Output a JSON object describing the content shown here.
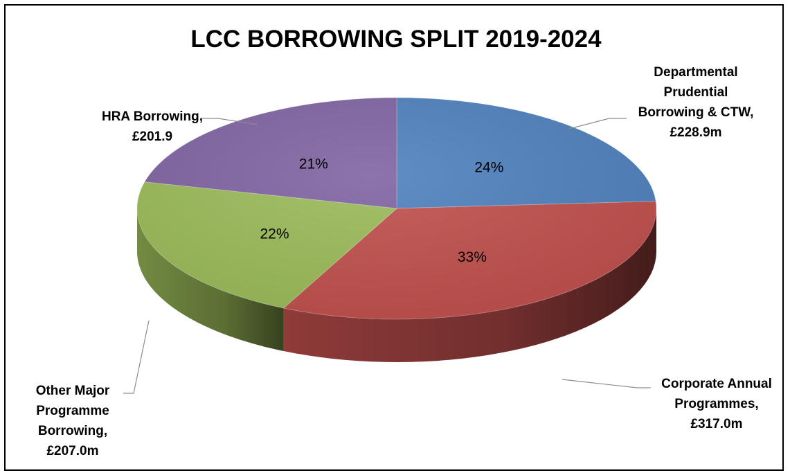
{
  "chart_data": {
    "type": "pie",
    "title": "LCC BORROWING SPLIT 2019-2024",
    "categories": [
      "Departmental Prudential Borrowing & CTW",
      "Corporate Annual Programmes",
      "Other Major Programme Borrowing",
      "HRA Borrowing"
    ],
    "values": [
      228.9,
      317.0,
      207.0,
      201.9
    ],
    "percent_labels": [
      "24%",
      "33%",
      "22%",
      "21%"
    ],
    "slice_labels": [
      [
        "Departmental",
        "Prudential",
        "Borrowing & CTW,",
        "£228.9m"
      ],
      [
        "Corporate Annual",
        "Programmes,",
        "£317.0m"
      ],
      [
        "Other Major",
        "Programme",
        "Borrowing,",
        "£207.0m"
      ],
      [
        "HRA Borrowing,",
        "£201.9"
      ]
    ],
    "colors": [
      "#4F81BD",
      "#C0504D",
      "#9BBB59",
      "#8064A2"
    ],
    "legend": "none",
    "style": "3d"
  }
}
